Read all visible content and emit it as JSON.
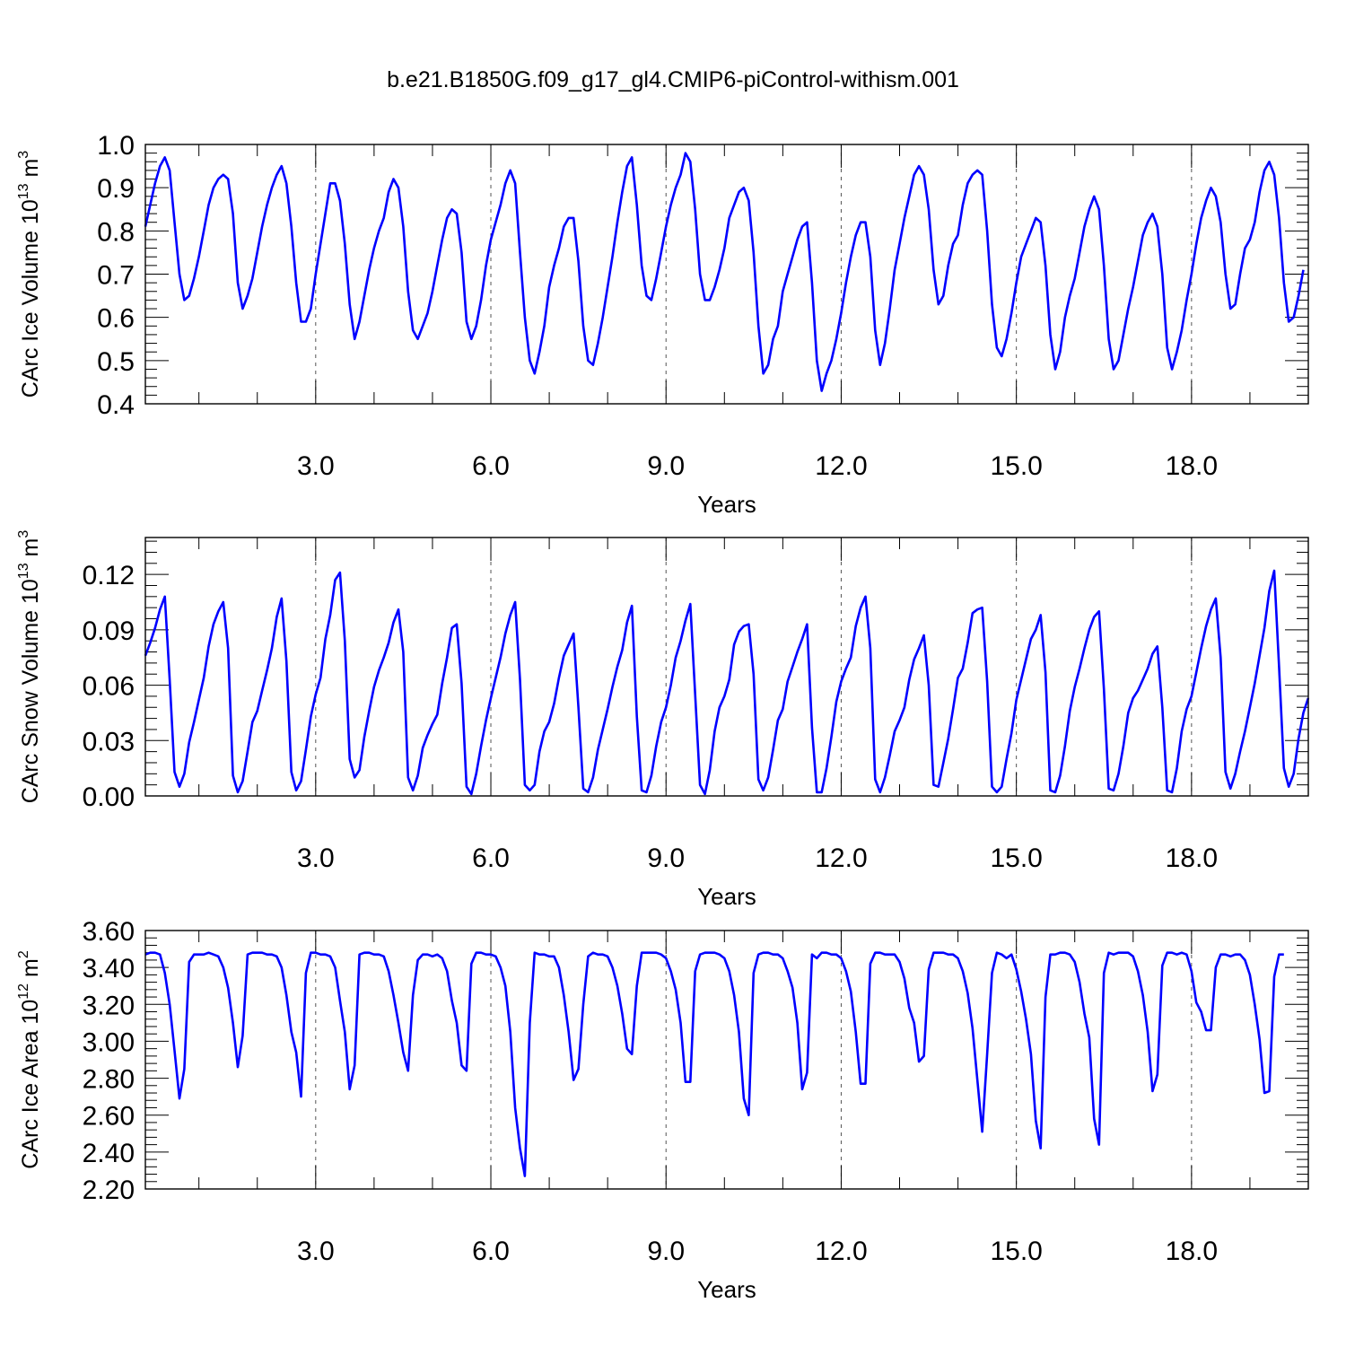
{
  "title": "b.e21.B1850G.f09_g17_gl4.CMIP6-piControl-withism.001",
  "chart_data": [
    {
      "type": "line",
      "title": "b.e21.B1850G.f09_g17_gl4.CMIP6-piControl-withism.001",
      "xlabel": "Years",
      "ylabel": "CArc Ice Volume 10¹³ m³",
      "ylabel_parts": {
        "base": "CArc Ice Volume 10",
        "exp1": "13",
        "mid": " m",
        "exp2": "3"
      },
      "xlim": [
        0.083,
        20.0
      ],
      "ylim": [
        0.4,
        1.0
      ],
      "xticks": [
        "3.0",
        "6.0",
        "9.0",
        "12.0",
        "15.0",
        "18.0"
      ],
      "xtick_values": [
        3,
        6,
        9,
        12,
        15,
        18
      ],
      "yticks": [
        "0.4",
        "0.5",
        "0.6",
        "0.7",
        "0.8",
        "0.9",
        "1.0"
      ],
      "ytick_values": [
        0.4,
        0.5,
        0.6,
        0.7,
        0.8,
        0.9,
        1.0
      ],
      "grid": "vertical dashed at labeled x ticks",
      "series": [
        {
          "color": "#0000ff",
          "x_start": 0.083,
          "x_step": 0.08333,
          "values": [
            0.81,
            0.86,
            0.91,
            0.95,
            0.97,
            0.94,
            0.82,
            0.7,
            0.64,
            0.65,
            0.69,
            0.74,
            0.8,
            0.86,
            0.9,
            0.92,
            0.93,
            0.92,
            0.84,
            0.68,
            0.62,
            0.65,
            0.69,
            0.75,
            0.81,
            0.86,
            0.9,
            0.93,
            0.95,
            0.91,
            0.81,
            0.68,
            0.59,
            0.59,
            0.62,
            0.7,
            0.77,
            0.84,
            0.91,
            0.91,
            0.87,
            0.77,
            0.63,
            0.55,
            0.59,
            0.65,
            0.71,
            0.76,
            0.8,
            0.83,
            0.89,
            0.92,
            0.9,
            0.81,
            0.66,
            0.57,
            0.55,
            0.58,
            0.61,
            0.66,
            0.72,
            0.78,
            0.83,
            0.85,
            0.84,
            0.75,
            0.59,
            0.55,
            0.58,
            0.64,
            0.72,
            0.78,
            0.82,
            0.86,
            0.91,
            0.94,
            0.91,
            0.75,
            0.6,
            0.5,
            0.47,
            0.52,
            0.58,
            0.67,
            0.72,
            0.76,
            0.81,
            0.83,
            0.83,
            0.73,
            0.58,
            0.5,
            0.49,
            0.54,
            0.6,
            0.67,
            0.74,
            0.82,
            0.89,
            0.95,
            0.97,
            0.86,
            0.72,
            0.65,
            0.64,
            0.69,
            0.75,
            0.81,
            0.86,
            0.9,
            0.93,
            0.98,
            0.96,
            0.85,
            0.7,
            0.64,
            0.64,
            0.67,
            0.71,
            0.76,
            0.83,
            0.86,
            0.89,
            0.9,
            0.87,
            0.75,
            0.58,
            0.47,
            0.49,
            0.55,
            0.58,
            0.66,
            0.7,
            0.74,
            0.78,
            0.81,
            0.82,
            0.68,
            0.5,
            0.43,
            0.47,
            0.5,
            0.55,
            0.61,
            0.68,
            0.74,
            0.79,
            0.82,
            0.82,
            0.74,
            0.57,
            0.49,
            0.54,
            0.62,
            0.71,
            0.77,
            0.83,
            0.88,
            0.93,
            0.95,
            0.93,
            0.85,
            0.71,
            0.63,
            0.65,
            0.72,
            0.77,
            0.79,
            0.86,
            0.91,
            0.93,
            0.94,
            0.93,
            0.8,
            0.63,
            0.53,
            0.51,
            0.55,
            0.61,
            0.68,
            0.74,
            0.77,
            0.8,
            0.83,
            0.82,
            0.72,
            0.56,
            0.48,
            0.52,
            0.6,
            0.65,
            0.69,
            0.75,
            0.81,
            0.85,
            0.88,
            0.85,
            0.72,
            0.55,
            0.48,
            0.5,
            0.56,
            0.62,
            0.67,
            0.73,
            0.79,
            0.82,
            0.84,
            0.81,
            0.7,
            0.53,
            0.48,
            0.52,
            0.57,
            0.64,
            0.7,
            0.77,
            0.83,
            0.87,
            0.9,
            0.88,
            0.82,
            0.7,
            0.62,
            0.63,
            0.7,
            0.76,
            0.78,
            0.82,
            0.89,
            0.94,
            0.96,
            0.93,
            0.83,
            0.68,
            0.59,
            0.6,
            0.65,
            0.71
          ]
        }
      ]
    },
    {
      "type": "line",
      "xlabel": "Years",
      "ylabel": "CArc Snow Volume 10¹³ m³",
      "ylabel_parts": {
        "base": "CArc Snow Volume 10",
        "exp1": "13",
        "mid": " m",
        "exp2": "3"
      },
      "xlim": [
        0.083,
        20.0
      ],
      "ylim": [
        0.0,
        0.14
      ],
      "xticks": [
        "3.0",
        "6.0",
        "9.0",
        "12.0",
        "15.0",
        "18.0"
      ],
      "xtick_values": [
        3,
        6,
        9,
        12,
        15,
        18
      ],
      "yticks": [
        "0.00",
        "0.03",
        "0.06",
        "0.09",
        "0.12"
      ],
      "ytick_values": [
        0.0,
        0.03,
        0.06,
        0.09,
        0.12
      ],
      "grid": "vertical dashed at labeled x ticks",
      "series": [
        {
          "color": "#0000ff",
          "x_start": 0.083,
          "x_step": 0.08333,
          "values": [
            0.076,
            0.083,
            0.091,
            0.101,
            0.108,
            0.063,
            0.013,
            0.005,
            0.012,
            0.029,
            0.04,
            0.052,
            0.064,
            0.081,
            0.093,
            0.1,
            0.105,
            0.08,
            0.011,
            0.002,
            0.008,
            0.024,
            0.04,
            0.046,
            0.057,
            0.068,
            0.08,
            0.097,
            0.107,
            0.073,
            0.013,
            0.003,
            0.008,
            0.025,
            0.043,
            0.055,
            0.064,
            0.085,
            0.098,
            0.117,
            0.121,
            0.084,
            0.02,
            0.01,
            0.014,
            0.032,
            0.046,
            0.059,
            0.068,
            0.075,
            0.083,
            0.094,
            0.101,
            0.078,
            0.01,
            0.003,
            0.011,
            0.026,
            0.033,
            0.039,
            0.044,
            0.061,
            0.075,
            0.091,
            0.093,
            0.061,
            0.005,
            0.001,
            0.012,
            0.027,
            0.041,
            0.053,
            0.064,
            0.075,
            0.088,
            0.098,
            0.105,
            0.063,
            0.006,
            0.003,
            0.006,
            0.024,
            0.035,
            0.04,
            0.05,
            0.064,
            0.076,
            0.082,
            0.088,
            0.048,
            0.004,
            0.002,
            0.01,
            0.025,
            0.036,
            0.047,
            0.059,
            0.07,
            0.079,
            0.094,
            0.103,
            0.043,
            0.003,
            0.002,
            0.011,
            0.027,
            0.04,
            0.048,
            0.06,
            0.075,
            0.084,
            0.095,
            0.104,
            0.055,
            0.006,
            0.001,
            0.014,
            0.035,
            0.048,
            0.054,
            0.063,
            0.082,
            0.089,
            0.092,
            0.093,
            0.066,
            0.009,
            0.003,
            0.01,
            0.025,
            0.041,
            0.047,
            0.062,
            0.07,
            0.078,
            0.085,
            0.093,
            0.037,
            0.002,
            0.002,
            0.015,
            0.032,
            0.051,
            0.062,
            0.069,
            0.075,
            0.092,
            0.102,
            0.108,
            0.08,
            0.009,
            0.002,
            0.01,
            0.022,
            0.035,
            0.041,
            0.048,
            0.063,
            0.074,
            0.08,
            0.087,
            0.06,
            0.006,
            0.005,
            0.018,
            0.031,
            0.047,
            0.064,
            0.069,
            0.083,
            0.099,
            0.101,
            0.102,
            0.062,
            0.005,
            0.002,
            0.005,
            0.02,
            0.034,
            0.052,
            0.063,
            0.074,
            0.085,
            0.09,
            0.098,
            0.067,
            0.003,
            0.002,
            0.011,
            0.027,
            0.046,
            0.059,
            0.069,
            0.08,
            0.09,
            0.097,
            0.1,
            0.058,
            0.004,
            0.003,
            0.012,
            0.027,
            0.045,
            0.053,
            0.057,
            0.063,
            0.069,
            0.077,
            0.081,
            0.048,
            0.003,
            0.002,
            0.015,
            0.035,
            0.047,
            0.054,
            0.067,
            0.08,
            0.092,
            0.101,
            0.107,
            0.075,
            0.013,
            0.004,
            0.012,
            0.024,
            0.035,
            0.048,
            0.061,
            0.076,
            0.091,
            0.111,
            0.122,
            0.07,
            0.015,
            0.005,
            0.012,
            0.031,
            0.045,
            0.053
          ]
        }
      ]
    },
    {
      "type": "line",
      "xlabel": "Years",
      "ylabel": "CArc Ice Area 10¹² m²",
      "ylabel_parts": {
        "base": "CArc Ice Area 10",
        "exp1": "12",
        "mid": " m",
        "exp2": "2"
      },
      "xlim": [
        0.083,
        20.0
      ],
      "ylim": [
        2.2,
        3.6
      ],
      "xticks": [
        "3.0",
        "6.0",
        "9.0",
        "12.0",
        "15.0",
        "18.0"
      ],
      "xtick_values": [
        3,
        6,
        9,
        12,
        15,
        18
      ],
      "yticks": [
        "2.20",
        "2.40",
        "2.60",
        "2.80",
        "3.00",
        "3.20",
        "3.40",
        "3.60"
      ],
      "ytick_values": [
        2.2,
        2.4,
        2.6,
        2.8,
        3.0,
        3.2,
        3.4,
        3.6
      ],
      "grid": "vertical dashed at labeled x ticks",
      "series": [
        {
          "color": "#0000ff",
          "x_start": 0.083,
          "x_step": 0.08333,
          "values": [
            3.47,
            3.48,
            3.48,
            3.47,
            3.37,
            3.2,
            2.95,
            2.69,
            2.85,
            3.43,
            3.47,
            3.47,
            3.47,
            3.48,
            3.47,
            3.46,
            3.4,
            3.29,
            3.1,
            2.86,
            3.03,
            3.47,
            3.48,
            3.48,
            3.48,
            3.47,
            3.47,
            3.46,
            3.4,
            3.25,
            3.05,
            2.94,
            2.7,
            3.37,
            3.48,
            3.48,
            3.47,
            3.47,
            3.46,
            3.4,
            3.22,
            3.05,
            2.74,
            2.87,
            3.47,
            3.48,
            3.48,
            3.47,
            3.47,
            3.46,
            3.38,
            3.25,
            3.1,
            2.94,
            2.84,
            3.25,
            3.44,
            3.47,
            3.47,
            3.46,
            3.47,
            3.45,
            3.38,
            3.22,
            3.1,
            2.87,
            2.84,
            3.42,
            3.48,
            3.48,
            3.47,
            3.47,
            3.46,
            3.4,
            3.3,
            3.05,
            2.64,
            2.42,
            2.27,
            3.1,
            3.48,
            3.47,
            3.47,
            3.46,
            3.46,
            3.4,
            3.25,
            3.05,
            2.79,
            2.85,
            3.2,
            3.46,
            3.48,
            3.47,
            3.47,
            3.46,
            3.4,
            3.3,
            3.15,
            2.96,
            2.93,
            3.3,
            3.48,
            3.48,
            3.48,
            3.48,
            3.47,
            3.45,
            3.38,
            3.28,
            3.1,
            2.78,
            2.78,
            3.38,
            3.47,
            3.48,
            3.48,
            3.48,
            3.47,
            3.45,
            3.38,
            3.25,
            3.05,
            2.69,
            2.6,
            3.37,
            3.47,
            3.48,
            3.48,
            3.47,
            3.47,
            3.45,
            3.38,
            3.29,
            3.1,
            2.74,
            2.83,
            3.47,
            3.45,
            3.48,
            3.48,
            3.47,
            3.47,
            3.45,
            3.38,
            3.27,
            3.05,
            2.77,
            2.77,
            3.42,
            3.48,
            3.48,
            3.47,
            3.47,
            3.47,
            3.43,
            3.34,
            3.18,
            3.1,
            2.89,
            2.92,
            3.39,
            3.48,
            3.48,
            3.48,
            3.47,
            3.47,
            3.45,
            3.38,
            3.26,
            3.07,
            2.79,
            2.51,
            2.93,
            3.37,
            3.48,
            3.47,
            3.45,
            3.47,
            3.39,
            3.27,
            3.12,
            2.93,
            2.57,
            2.42,
            3.24,
            3.47,
            3.47,
            3.48,
            3.48,
            3.47,
            3.43,
            3.32,
            3.15,
            3.02,
            2.58,
            2.44,
            3.37,
            3.48,
            3.47,
            3.48,
            3.48,
            3.48,
            3.46,
            3.38,
            3.25,
            3.05,
            2.73,
            2.82,
            3.41,
            3.48,
            3.48,
            3.47,
            3.48,
            3.47,
            3.38,
            3.21,
            3.16,
            3.06,
            3.06,
            3.4,
            3.47,
            3.47,
            3.46,
            3.47,
            3.47,
            3.44,
            3.36,
            3.2,
            3.01,
            2.72,
            2.73,
            3.35,
            3.47,
            3.47
          ]
        }
      ]
    }
  ]
}
